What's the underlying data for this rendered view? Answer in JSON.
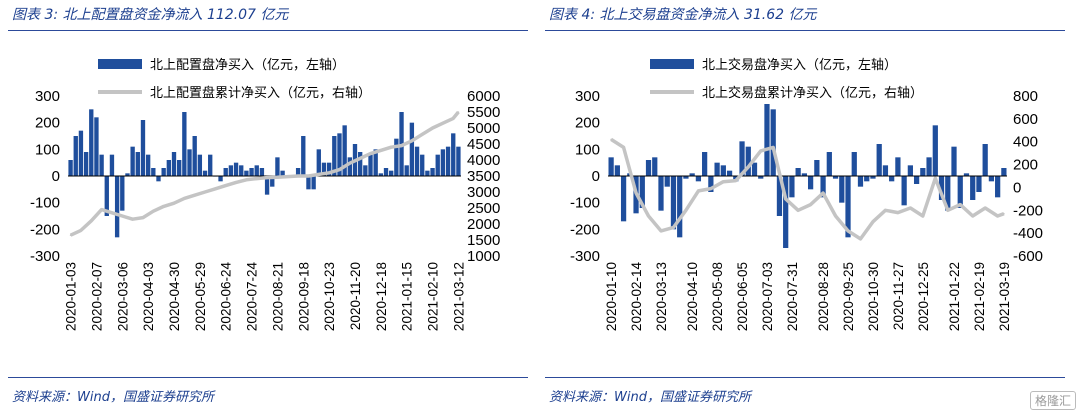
{
  "panels": [
    {
      "title": "图表 3:  北上配置盘资金净流入 112.07 亿元",
      "source": "资料来源：Wind，国盛证券研究所",
      "legend_bar": "北上配置盘净买入（亿元，左轴）",
      "legend_line": "北上配置盘累计净买入（亿元，右轴）"
    },
    {
      "title": "图表 4:  北上交易盘资金净流入 31.62 亿元",
      "source": "资料来源：Wind，国盛证券研究所",
      "legend_bar": "北上交易盘净买入（亿元，左轴）",
      "legend_line": "北上交易盘累计净买入（亿元，右轴）"
    }
  ],
  "watermark": "格隆汇",
  "colors": {
    "bar": "#1f4e9c",
    "line": "#c4c4c4",
    "title": "#1c3f8f",
    "rule": "#2c4a9a"
  },
  "chart_data": [
    {
      "type": "bar",
      "x_ticks": [
        "2020-01-03",
        "2020-02-07",
        "2020-03-06",
        "2020-04-03",
        "2020-04-30",
        "2020-05-29",
        "2020-06-24",
        "2020-07-24",
        "2020-08-21",
        "2020-09-18",
        "2020-10-23",
        "2020-11-20",
        "2020-12-18",
        "2021-01-15",
        "2021-02-10",
        "2021-03-12"
      ],
      "left_axis": {
        "min": -300,
        "max": 300,
        "ticks": [
          300,
          200,
          100,
          0,
          -100,
          -200,
          -300
        ]
      },
      "right_axis": {
        "min": 1000,
        "max": 6000,
        "ticks": [
          6000,
          5500,
          5000,
          4500,
          4000,
          3500,
          3000,
          2500,
          2000,
          1500,
          1000
        ]
      },
      "series": [
        {
          "name": "北上配置盘净买入（亿元，左轴）",
          "axis": "left",
          "values": [
            60,
            150,
            170,
            90,
            250,
            220,
            80,
            -150,
            80,
            -230,
            -130,
            10,
            110,
            90,
            210,
            80,
            30,
            -20,
            30,
            60,
            90,
            60,
            240,
            100,
            150,
            80,
            20,
            80,
            0,
            -20,
            30,
            40,
            50,
            40,
            20,
            30,
            40,
            30,
            -70,
            -40,
            70,
            20,
            0,
            0,
            30,
            150,
            -50,
            -50,
            100,
            50,
            50,
            150,
            160,
            190,
            70,
            120,
            90,
            40,
            80,
            100,
            10,
            30,
            20,
            140,
            240,
            40,
            200,
            110,
            80,
            20,
            30,
            80,
            100,
            110,
            160,
            110
          ],
          "x_range": [
            0,
            75
          ]
        },
        {
          "name": "北上配置盘累计净买入（亿元，右轴）",
          "axis": "right",
          "type": "line",
          "x": [
            0,
            2,
            4,
            6,
            8,
            10,
            12,
            14,
            16,
            18,
            20,
            22,
            24,
            26,
            28,
            30,
            32,
            34,
            36,
            38,
            40,
            42,
            44,
            46,
            48,
            50,
            52,
            54,
            56,
            58,
            60,
            62,
            64,
            66,
            68,
            70,
            72,
            74,
            75
          ],
          "values": [
            1650,
            1800,
            2100,
            2450,
            2350,
            2250,
            2150,
            2200,
            2400,
            2550,
            2650,
            2800,
            2900,
            3000,
            3100,
            3200,
            3300,
            3380,
            3420,
            3450,
            3460,
            3480,
            3500,
            3500,
            3550,
            3600,
            3700,
            3900,
            4050,
            4200,
            4300,
            4400,
            4450,
            4600,
            4800,
            5000,
            5150,
            5300,
            5500
          ]
        }
      ]
    },
    {
      "type": "bar",
      "x_ticks": [
        "2020-01-10",
        "2020-02-14",
        "2020-03-13",
        "2020-04-10",
        "2020-05-08",
        "2020-06-05",
        "2020-07-03",
        "2020-07-31",
        "2020-08-28",
        "2020-09-25",
        "2020-10-30",
        "2020-11-27",
        "2020-12-25",
        "2021-01-22",
        "2021-02-19",
        "2021-03-19"
      ],
      "left_axis": {
        "min": -300,
        "max": 300,
        "ticks": [
          300,
          200,
          100,
          0,
          -100,
          -200,
          -300
        ]
      },
      "right_axis": {
        "min": -600,
        "max": 800,
        "ticks": [
          800,
          600,
          400,
          200,
          0,
          -200,
          -400,
          -600
        ]
      },
      "series": [
        {
          "name": "北上交易盘净买入（亿元，左轴）",
          "axis": "left",
          "values": [
            70,
            40,
            -170,
            10,
            -140,
            -120,
            60,
            70,
            -130,
            -40,
            -200,
            -230,
            -10,
            10,
            -20,
            90,
            -60,
            50,
            40,
            20,
            -20,
            130,
            110,
            50,
            -10,
            270,
            250,
            -150,
            -270,
            -80,
            30,
            10,
            -50,
            60,
            -80,
            90,
            -10,
            -100,
            -230,
            90,
            -40,
            -20,
            -10,
            120,
            40,
            -20,
            70,
            -110,
            40,
            -30,
            30,
            70,
            190,
            -90,
            -130,
            110,
            -120,
            10,
            -90,
            -60,
            120,
            -20,
            -80,
            30
          ],
          "x_range": [
            0,
            63
          ]
        },
        {
          "name": "北上交易盘累计净买入（亿元，右轴）",
          "axis": "right",
          "type": "line",
          "x": [
            0,
            2,
            4,
            6,
            8,
            10,
            12,
            14,
            16,
            18,
            20,
            22,
            24,
            26,
            28,
            30,
            32,
            34,
            36,
            38,
            40,
            42,
            44,
            46,
            48,
            50,
            52,
            54,
            56,
            58,
            60,
            62,
            63
          ],
          "values": [
            420,
            350,
            -50,
            -250,
            -380,
            -350,
            -200,
            -30,
            -10,
            50,
            60,
            180,
            320,
            350,
            -100,
            -200,
            -150,
            -50,
            -250,
            -380,
            -450,
            -300,
            -200,
            -220,
            -180,
            -250,
            80,
            -200,
            -150,
            -250,
            -180,
            -250,
            -230
          ]
        }
      ]
    }
  ]
}
